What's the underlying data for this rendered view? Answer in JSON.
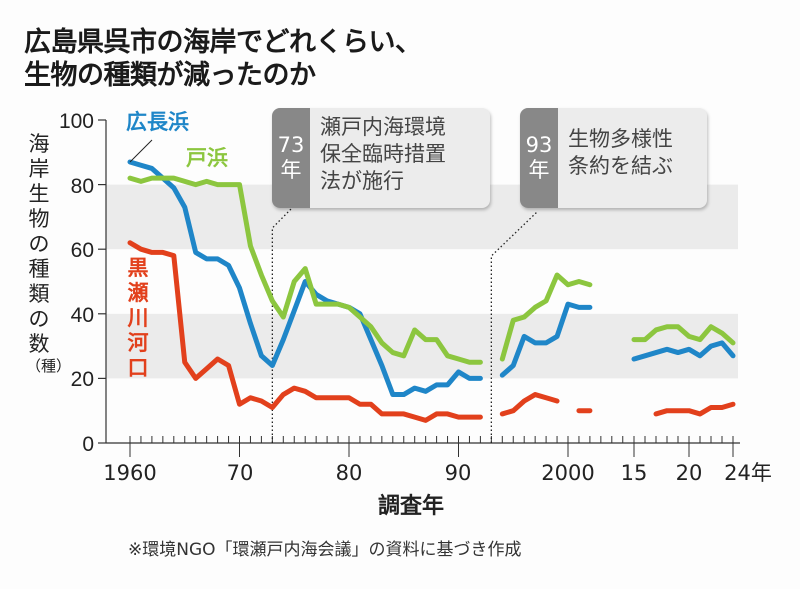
{
  "title": [
    "広島県呉市の海岸でどれくらい、",
    "生物の種類が減ったのか"
  ],
  "chart_data": {
    "type": "line",
    "title": "広島県呉市の海岸でどれくらい、生物の種類が減ったのか",
    "xlabel": "調査年",
    "ylabel": "海岸生物の種類の数",
    "yunit": "（種）",
    "ylim": [
      0,
      100
    ],
    "yticks": [
      "0",
      "20",
      "40",
      "60",
      "80",
      "100"
    ],
    "xtick_labels": [
      "1960",
      "70",
      "80",
      "90",
      "2000",
      "15",
      "20",
      "24年"
    ],
    "bands": [
      [
        20,
        40
      ],
      [
        60,
        80
      ]
    ],
    "x": [
      1960,
      1961,
      1962,
      1963,
      1964,
      1965,
      1966,
      1967,
      1968,
      1969,
      1970,
      1971,
      1972,
      1973,
      1974,
      1975,
      1976,
      1977,
      1978,
      1979,
      1980,
      1981,
      1982,
      1983,
      1984,
      1985,
      1986,
      1987,
      1988,
      1989,
      1990,
      1991,
      1992,
      1993,
      1994,
      1995,
      1996,
      1997,
      1998,
      1999,
      2000,
      2001,
      2002,
      2015,
      2016,
      2017,
      2018,
      2019,
      2020,
      2021,
      2022,
      2023,
      2024
    ],
    "series": [
      {
        "name": "広長浜",
        "color": "#1f86c8",
        "values": [
          87,
          86,
          85,
          82,
          79,
          73,
          59,
          57,
          57,
          55,
          48,
          37,
          27,
          24,
          32,
          41,
          50,
          46,
          44,
          43,
          42,
          40,
          32,
          24,
          15,
          15,
          17,
          16,
          18,
          18,
          22,
          20,
          20,
          null,
          21,
          24,
          33,
          31,
          31,
          33,
          43,
          42,
          42,
          26,
          27,
          28,
          29,
          28,
          29,
          27,
          30,
          31,
          27
        ]
      },
      {
        "name": "戸浜",
        "color": "#8cc63f",
        "values": [
          82,
          81,
          82,
          82,
          82,
          81,
          80,
          81,
          80,
          80,
          80,
          61,
          52,
          44,
          39,
          50,
          54,
          43,
          43,
          43,
          42,
          39,
          36,
          31,
          28,
          27,
          35,
          32,
          32,
          27,
          26,
          25,
          25,
          null,
          26,
          38,
          39,
          42,
          44,
          52,
          49,
          50,
          49,
          32,
          32,
          35,
          36,
          36,
          33,
          32,
          36,
          34,
          31
        ]
      },
      {
        "name": "黒瀬川河口",
        "color": "#e2401c",
        "values": [
          62,
          60,
          59,
          59,
          58,
          25,
          20,
          23,
          26,
          24,
          12,
          14,
          13,
          11,
          15,
          17,
          16,
          14,
          14,
          14,
          14,
          12,
          12,
          9,
          9,
          9,
          8,
          7,
          9,
          9,
          8,
          8,
          8,
          null,
          9,
          10,
          13,
          15,
          14,
          13,
          null,
          10,
          10,
          null,
          null,
          9,
          10,
          10,
          10,
          9,
          11,
          11,
          12
        ]
      }
    ],
    "annotations": [
      {
        "year_label": "73",
        "year_unit": "年",
        "text": "瀬戸内海環境\n保全臨時措置\n法が施行",
        "year": 1973
      },
      {
        "year_label": "93",
        "year_unit": "年",
        "text": "生物多様性\n条約を結ぶ",
        "year": 1993
      }
    ]
  },
  "source": "※環境NGO「環瀬戸内海会議」の資料に基づき作成"
}
